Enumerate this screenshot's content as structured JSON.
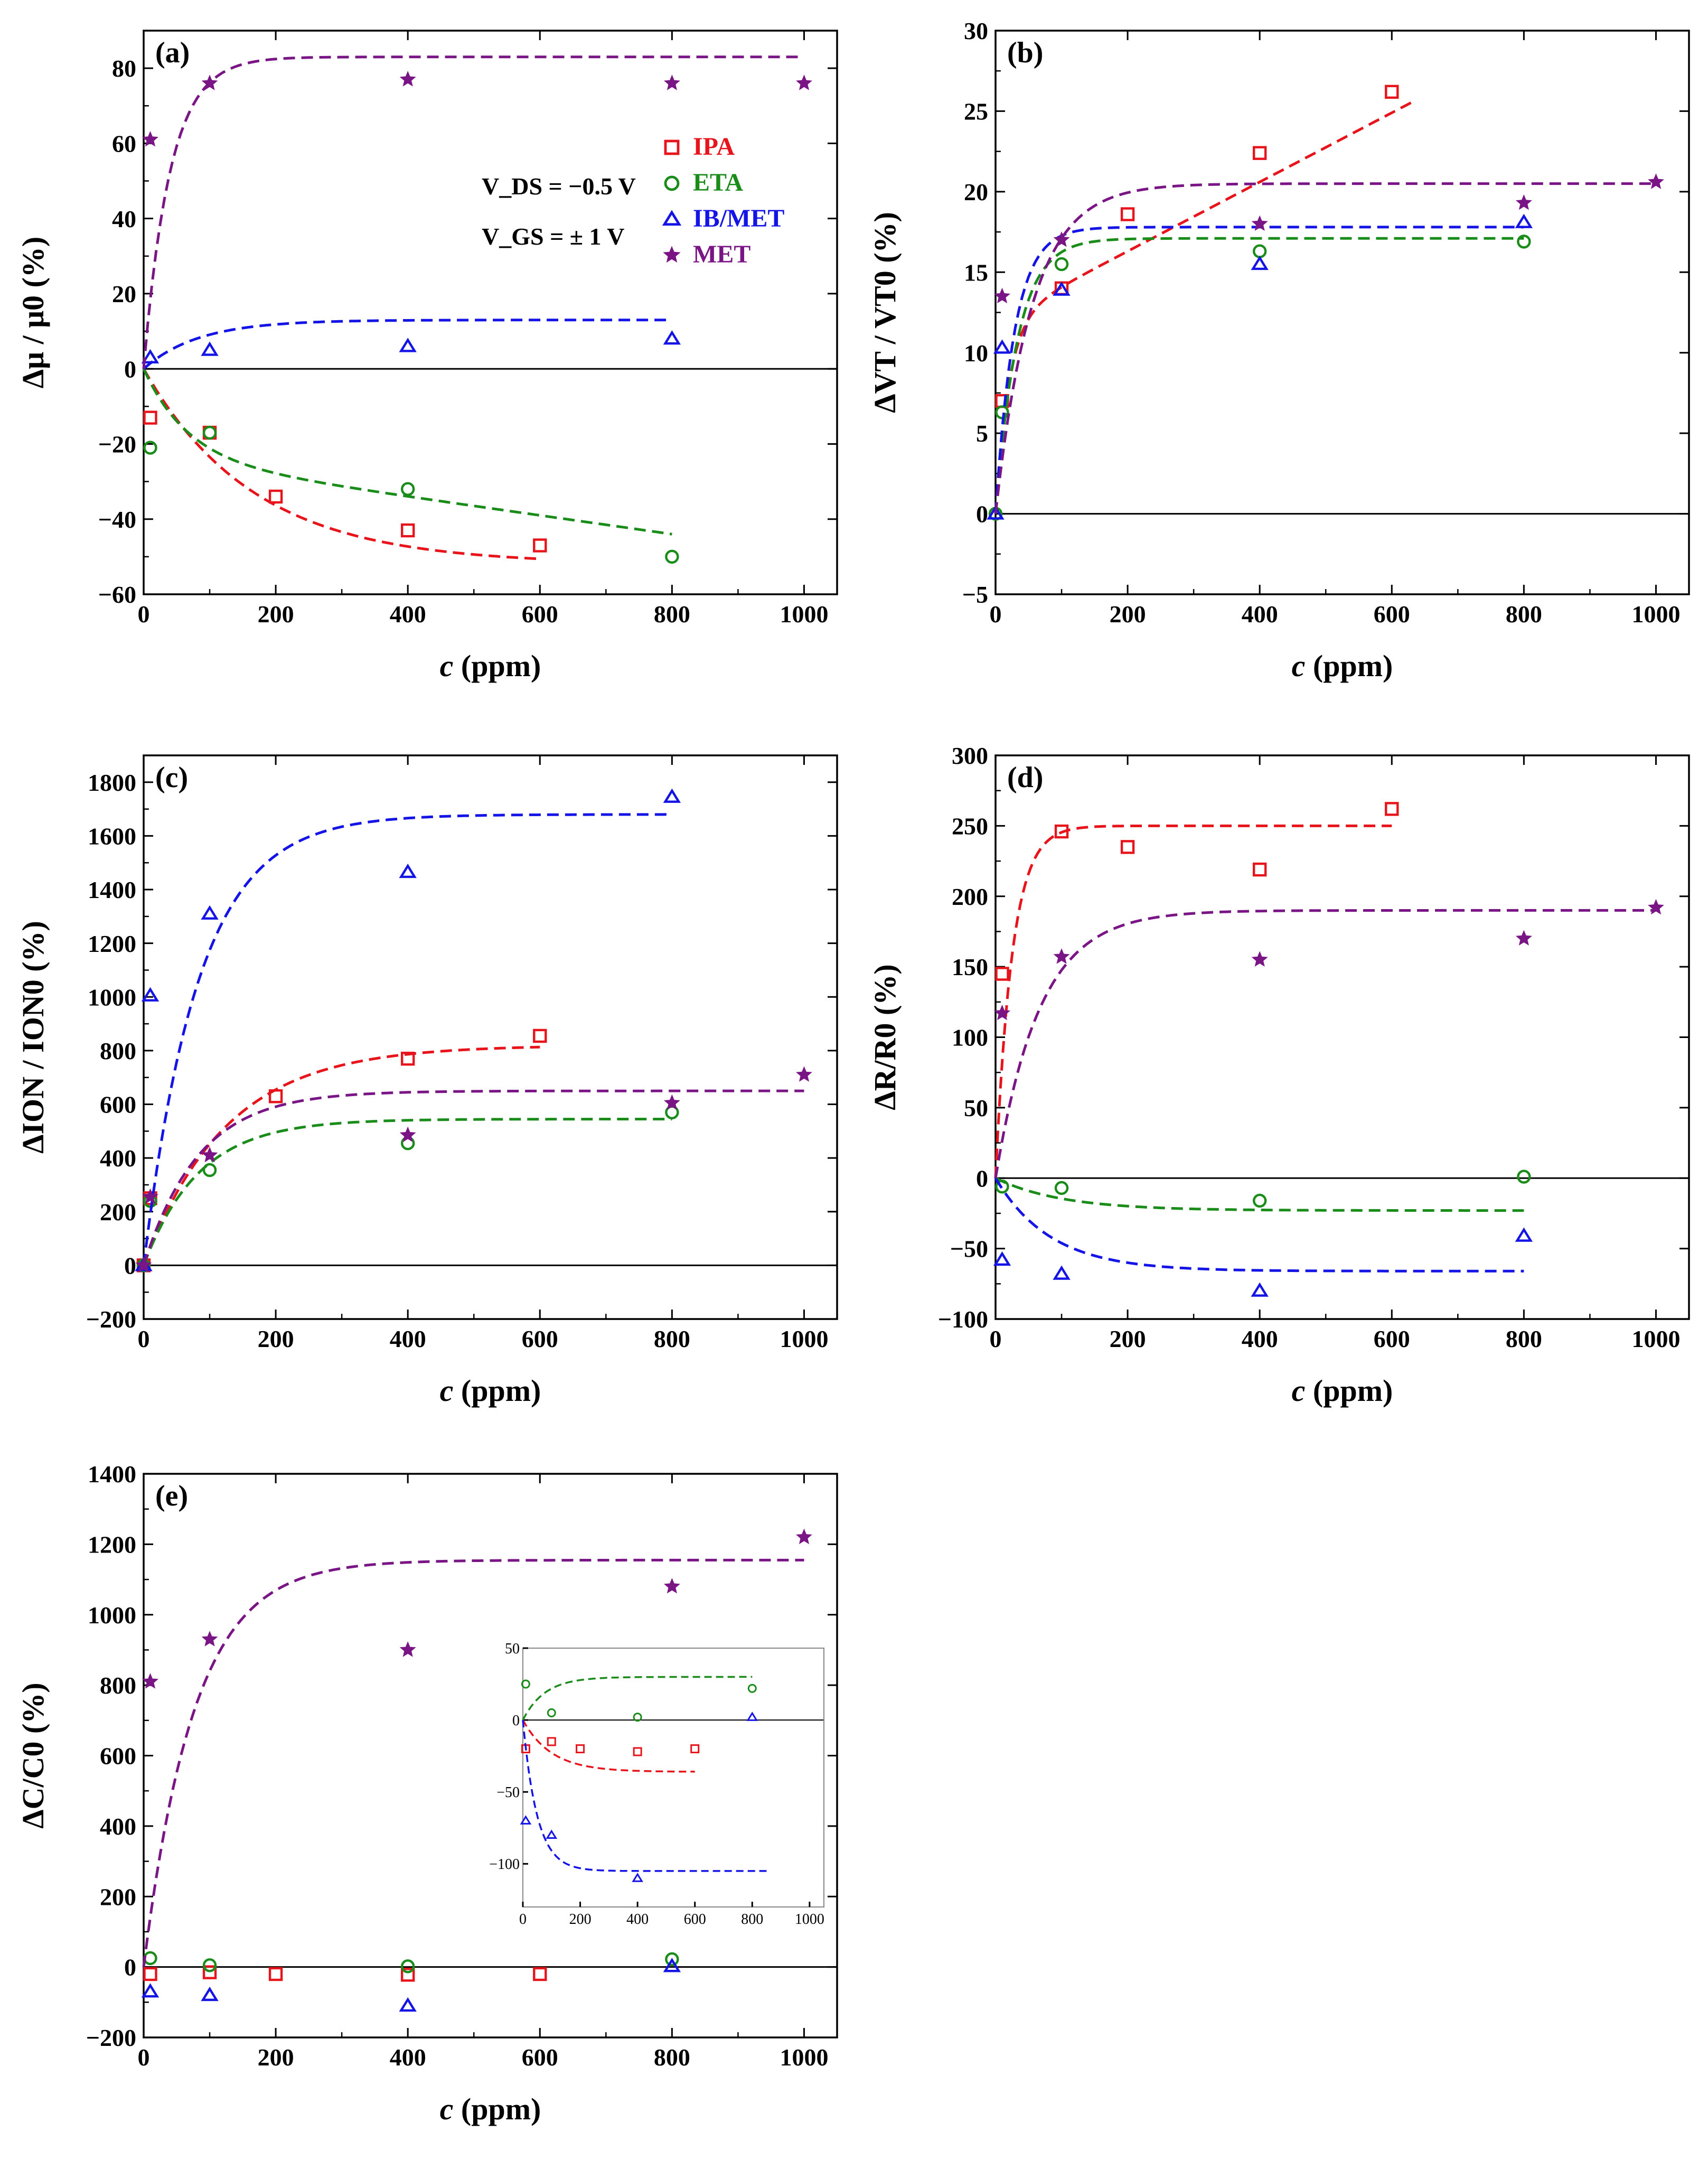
{
  "colors": {
    "IPA": "#e8141b",
    "ETA": "#1a8c1a",
    "IB/MET": "#1414e6",
    "MET": "#7a1585"
  },
  "legend": {
    "entries": [
      {
        "name": "IPA",
        "marker": "square"
      },
      {
        "name": "ETA",
        "marker": "circle"
      },
      {
        "name": "IB/MET",
        "marker": "triangle"
      },
      {
        "name": "MET",
        "marker": "star"
      }
    ],
    "conditions": [
      "V_DS = −0.5 V",
      "V_GS = ± 1 V"
    ]
  },
  "chart_data": [
    {
      "id": "a",
      "tag": "(a)",
      "type": "scatter",
      "xlabel": "c (ppm)",
      "ylabel": "Δμ / μ0 (%)",
      "xlim": [
        0,
        1050
      ],
      "ylim": [
        -60,
        90
      ],
      "xticks": [
        0,
        200,
        400,
        600,
        800,
        1000
      ],
      "yticks": [
        -60,
        -40,
        -20,
        0,
        20,
        40,
        60,
        80
      ],
      "series": [
        {
          "name": "IPA",
          "marker": "square",
          "x": [
            10,
            100,
            200,
            400,
            600
          ],
          "y": [
            -13,
            -17,
            -34,
            -43,
            -47
          ],
          "fit": {
            "type": "sat",
            "A": -52,
            "k": 0.006,
            "xmax": 600
          }
        },
        {
          "name": "ETA",
          "marker": "circle",
          "x": [
            10,
            100,
            400,
            800
          ],
          "y": [
            -21,
            -17,
            -32,
            -50
          ],
          "fit": {
            "type": "lin_sat",
            "A": -24,
            "k": 0.015,
            "m": -0.025,
            "xmax": 800
          }
        },
        {
          "name": "IB/MET",
          "marker": "triangle",
          "x": [
            10,
            100,
            400,
            800
          ],
          "y": [
            3,
            5,
            6,
            8
          ],
          "fit": {
            "type": "sat",
            "A": 13,
            "k": 0.012,
            "xmax": 800
          }
        },
        {
          "name": "MET",
          "marker": "star",
          "x": [
            10,
            100,
            400,
            800,
            1000
          ],
          "y": [
            61,
            76,
            77,
            76,
            76
          ],
          "fit": {
            "type": "sat",
            "A": 83,
            "k": 0.025,
            "xmax": 1000
          }
        }
      ]
    },
    {
      "id": "b",
      "tag": "(b)",
      "type": "scatter",
      "xlabel": "c (ppm)",
      "ylabel": "ΔVT / VT0 (%)",
      "xlim": [
        0,
        1050
      ],
      "ylim": [
        -5,
        30
      ],
      "xticks": [
        0,
        200,
        400,
        600,
        800,
        1000
      ],
      "yticks": [
        -5,
        0,
        5,
        10,
        15,
        20,
        25,
        30
      ],
      "series": [
        {
          "name": "IPA",
          "marker": "square",
          "x": [
            10,
            100,
            200,
            400,
            600
          ],
          "y": [
            7,
            14,
            18.6,
            22.4,
            26.2
          ],
          "fit": {
            "type": "lin_sat",
            "A": 12,
            "k": 0.05,
            "m": 0.0215,
            "xmax": 630
          }
        },
        {
          "name": "ETA",
          "marker": "circle",
          "x": [
            0,
            10,
            100,
            400,
            800
          ],
          "y": [
            0,
            6.3,
            15.5,
            16.3,
            16.9
          ],
          "fit": {
            "type": "sat",
            "A": 17.1,
            "k": 0.03,
            "xmax": 800
          }
        },
        {
          "name": "IB/MET",
          "marker": "triangle",
          "x": [
            0,
            10,
            100,
            400,
            800
          ],
          "y": [
            0,
            10.3,
            13.9,
            15.5,
            18.1
          ],
          "fit": {
            "type": "sat",
            "A": 17.8,
            "k": 0.035,
            "xmax": 800
          }
        },
        {
          "name": "MET",
          "marker": "star",
          "x": [
            10,
            100,
            400,
            800,
            1000
          ],
          "y": [
            13.5,
            17,
            18,
            19.3,
            20.6
          ],
          "fit": {
            "type": "sat",
            "A": 20.5,
            "k": 0.018,
            "xmax": 1000
          }
        }
      ]
    },
    {
      "id": "c",
      "tag": "(c)",
      "type": "scatter",
      "xlabel": "c (ppm)",
      "ylabel": "ΔION / ION0 (%)",
      "xlim": [
        0,
        1050
      ],
      "ylim": [
        -200,
        1900
      ],
      "xticks": [
        0,
        200,
        400,
        600,
        800,
        1000
      ],
      "yticks": [
        -200,
        0,
        200,
        400,
        600,
        800,
        1000,
        1200,
        1400,
        1600,
        1800
      ],
      "series": [
        {
          "name": "IPA",
          "marker": "square",
          "x": [
            0,
            10,
            200,
            400,
            600
          ],
          "y": [
            0,
            250,
            630,
            770,
            855
          ],
          "fit": {
            "type": "sat",
            "A": 820,
            "k": 0.008,
            "xmax": 600
          }
        },
        {
          "name": "ETA",
          "marker": "circle",
          "x": [
            0,
            10,
            100,
            400,
            800
          ],
          "y": [
            0,
            240,
            355,
            455,
            570
          ],
          "fit": {
            "type": "sat",
            "A": 545,
            "k": 0.012,
            "xmax": 800
          }
        },
        {
          "name": "IB/MET",
          "marker": "triangle",
          "x": [
            0,
            10,
            100,
            400,
            800
          ],
          "y": [
            0,
            1005,
            1310,
            1465,
            1745
          ],
          "fit": {
            "type": "sat",
            "A": 1680,
            "k": 0.012,
            "xmax": 800
          }
        },
        {
          "name": "MET",
          "marker": "star",
          "x": [
            0,
            10,
            100,
            400,
            800,
            1000
          ],
          "y": [
            0,
            255,
            410,
            485,
            605,
            710
          ],
          "fit": {
            "type": "sat",
            "A": 650,
            "k": 0.012,
            "xmax": 1000
          }
        }
      ]
    },
    {
      "id": "d",
      "tag": "(d)",
      "type": "scatter",
      "xlabel": "c (ppm)",
      "ylabel": "ΔR/R0 (%)",
      "xlim": [
        0,
        1050
      ],
      "ylim": [
        -100,
        300
      ],
      "xticks": [
        0,
        200,
        400,
        600,
        800,
        1000
      ],
      "yticks": [
        -100,
        -50,
        0,
        50,
        100,
        150,
        200,
        250,
        300
      ],
      "series": [
        {
          "name": "IPA",
          "marker": "square",
          "x": [
            10,
            100,
            200,
            400,
            600
          ],
          "y": [
            145,
            246,
            235,
            219,
            262
          ],
          "fit": {
            "type": "sat",
            "A": 250,
            "k": 0.04,
            "xmax": 600
          }
        },
        {
          "name": "ETA",
          "marker": "circle",
          "x": [
            10,
            100,
            400,
            800
          ],
          "y": [
            -6,
            -7,
            -16,
            1
          ],
          "fit": {
            "type": "sat",
            "A": -23,
            "k": 0.01,
            "xmax": 800
          }
        },
        {
          "name": "IB/MET",
          "marker": "triangle",
          "x": [
            10,
            100,
            400,
            800
          ],
          "y": [
            -58,
            -68,
            -80,
            -41
          ],
          "fit": {
            "type": "sat",
            "A": -66,
            "k": 0.012,
            "xmax": 800
          }
        },
        {
          "name": "MET",
          "marker": "star",
          "x": [
            10,
            100,
            400,
            800,
            1000
          ],
          "y": [
            117,
            157,
            155,
            170,
            192
          ],
          "fit": {
            "type": "sat",
            "A": 190,
            "k": 0.015,
            "xmax": 1000
          }
        }
      ]
    },
    {
      "id": "e",
      "tag": "(e)",
      "type": "scatter",
      "xlabel": "c (ppm)",
      "ylabel": "ΔC/C0 (%)",
      "xlim": [
        0,
        1050
      ],
      "ylim": [
        -200,
        1400
      ],
      "xticks": [
        0,
        200,
        400,
        600,
        800,
        1000
      ],
      "yticks": [
        -200,
        0,
        200,
        400,
        600,
        800,
        1000,
        1200,
        1400
      ],
      "series": [
        {
          "name": "IPA",
          "marker": "square",
          "x": [
            10,
            100,
            200,
            400,
            600
          ],
          "y": [
            -20,
            -15,
            -20,
            -22,
            -20
          ]
        },
        {
          "name": "ETA",
          "marker": "circle",
          "x": [
            10,
            100,
            400,
            800
          ],
          "y": [
            25,
            5,
            2,
            22
          ]
        },
        {
          "name": "IB/MET",
          "marker": "triangle",
          "x": [
            10,
            100,
            400,
            800
          ],
          "y": [
            -70,
            -80,
            -110,
            2
          ]
        },
        {
          "name": "MET",
          "marker": "star",
          "x": [
            10,
            100,
            400,
            800,
            1000
          ],
          "y": [
            810,
            930,
            900,
            1080,
            1220
          ],
          "fit": {
            "type": "sat",
            "A": 1155,
            "k": 0.013,
            "xmax": 1000
          }
        }
      ]
    },
    {
      "id": "e-inset",
      "tag": "",
      "type": "scatter",
      "xlabel": "",
      "ylabel": "",
      "xlim": [
        0,
        1050
      ],
      "ylim": [
        -130,
        50
      ],
      "xticks": [
        0,
        200,
        400,
        600,
        800,
        1000
      ],
      "yticks": [
        -100,
        -50,
        0,
        50
      ],
      "series": [
        {
          "name": "IPA",
          "marker": "square",
          "x": [
            10,
            100,
            200,
            400,
            600
          ],
          "y": [
            -20,
            -15,
            -20,
            -22,
            -20
          ],
          "fit": {
            "type": "sat",
            "A": -36,
            "k": 0.01,
            "xmax": 600
          }
        },
        {
          "name": "ETA",
          "marker": "circle",
          "x": [
            10,
            100,
            400,
            800
          ],
          "y": [
            25,
            5,
            2,
            22
          ],
          "fit": {
            "type": "sat",
            "A": 30,
            "k": 0.013,
            "xmax": 800
          }
        },
        {
          "name": "IB/MET",
          "marker": "triangle",
          "x": [
            10,
            100,
            400,
            800
          ],
          "y": [
            -70,
            -80,
            -110,
            2
          ],
          "fit": {
            "type": "sat",
            "A": -105,
            "k": 0.02,
            "xmax": 850
          }
        }
      ]
    }
  ]
}
